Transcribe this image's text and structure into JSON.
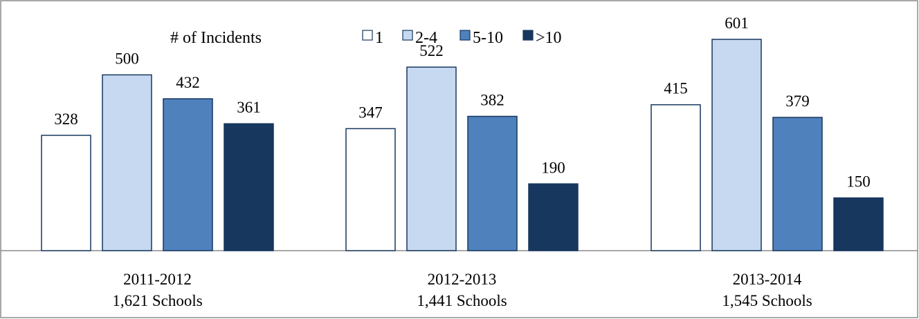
{
  "chart_data": {
    "type": "bar",
    "legend": {
      "title": "# of Incidents",
      "placement": "top-center"
    },
    "groups": [
      {
        "label": "2011-2012",
        "sublabel": "1,621 Schools",
        "values": [
          328,
          500,
          432,
          361
        ]
      },
      {
        "label": "2012-2013",
        "sublabel": "1,441 Schools",
        "values": [
          347,
          522,
          382,
          190
        ]
      },
      {
        "label": "2013-2014",
        "sublabel": "1,545 Schools",
        "values": [
          415,
          601,
          379,
          150
        ]
      }
    ],
    "series": [
      {
        "name": "1",
        "color": "#ffffff"
      },
      {
        "name": "2-4",
        "color": "#c6d9f1"
      },
      {
        "name": "5-10",
        "color": "#4f81bd"
      },
      {
        "name": ">10",
        "color": "#17375e"
      }
    ],
    "ylim": [
      0,
      700
    ],
    "grid": false,
    "data_labels": true
  }
}
